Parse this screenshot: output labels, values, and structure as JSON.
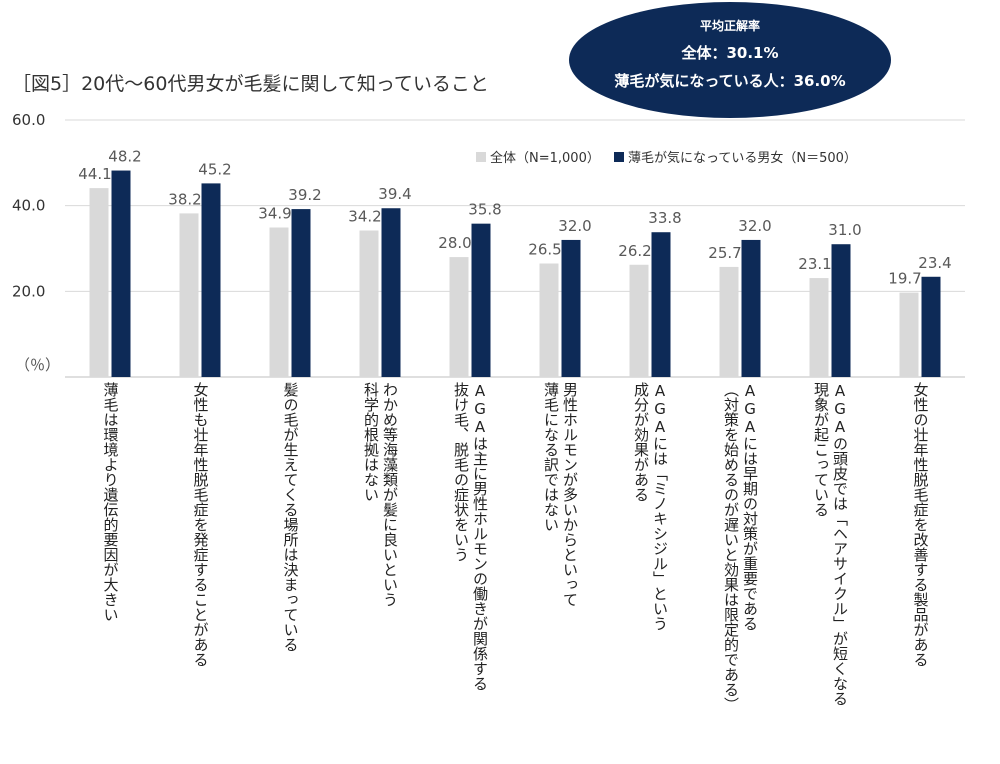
{
  "chart_data": {
    "type": "bar",
    "title": "［図5］20代～60代男女が毛髪に関して知っていること",
    "ylabel": "（％）",
    "ylim": [
      0,
      60
    ],
    "yticks": [
      "60.0",
      "40.0",
      "20.0"
    ],
    "grid": true,
    "legend_position": "top-right",
    "categories": [
      "薄毛は環境より遺伝的要因が大きい",
      "女性も壮年性脱毛症を発症することがある",
      "髪の毛が生えてくる場所は決まっている",
      "わかめ等海藻類が髪に良いという\n科学的根拠はない",
      "AGAは主に男性ホルモンの働きが関係する\n抜け毛、脱毛の症状をいう",
      "男性ホルモンが多いからといって\n薄毛になる訳ではない",
      "AGAには「ミノキシジル」という\n成分が効果がある",
      "AGAには早期の対策が重要である\n（対策を始めるのが遅いと効果は限定的である）",
      "AGAの頭皮では「ヘアサイクル」が短くなる\n現象が起こっている",
      "女性の壮年性脱毛症を改善する製品がある"
    ],
    "series": [
      {
        "name": "全体（N=1,000）",
        "color": "#d9d9d9",
        "values": [
          44.1,
          38.2,
          34.9,
          34.2,
          28.0,
          26.5,
          26.2,
          25.7,
          23.1,
          19.7
        ],
        "labels": [
          "44.1",
          "38.2",
          "34.9",
          "34.2",
          "28.0",
          "26.5",
          "26.2",
          "25.7",
          "23.1",
          "19.7"
        ]
      },
      {
        "name": "薄毛が気になっている男女（N＝500）",
        "color": "#0d2a57",
        "values": [
          48.2,
          45.2,
          39.2,
          39.4,
          35.8,
          32.0,
          33.8,
          32.0,
          31.0,
          23.4
        ],
        "labels": [
          "48.2",
          "45.2",
          "39.2",
          "39.4",
          "35.8",
          "32.0",
          "33.8",
          "32.0",
          "31.0",
          "23.4"
        ]
      }
    ],
    "callout": {
      "heading": "平均正解率",
      "line1": "全体：30.1%",
      "line2": "薄毛が気になっている人：36.0%",
      "color": "#0d2a57"
    }
  }
}
